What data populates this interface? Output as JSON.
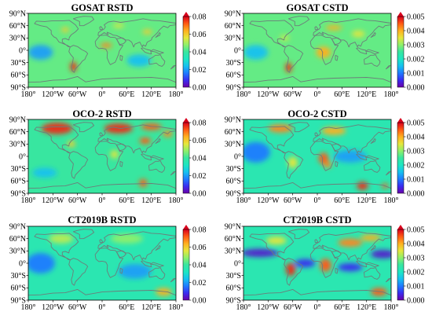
{
  "colors": {
    "colormap": [
      "#6a00a8",
      "#3a2cf0",
      "#1e7bff",
      "#16c1ef",
      "#1ee6c2",
      "#38e6a0",
      "#8ff06a",
      "#e6e63c",
      "#ffb020",
      "#ff5a14",
      "#d8001c"
    ],
    "background_field": "#2fe2b4",
    "coastline": "#6c7d7a"
  },
  "lat_ticks": [
    "90°N",
    "60°N",
    "30°N",
    "0°",
    "30°S",
    "60°S",
    "90°S"
  ],
  "lon_ticks": [
    "180°",
    "120°W",
    "60°W",
    "0°",
    "60°E",
    "120°E",
    "180°"
  ],
  "panels": [
    {
      "title": "GOSAT RSTD",
      "colorbar_ticks": [
        "0.08",
        "0.06",
        "0.04",
        "0.02",
        "0.00"
      ],
      "fill_level": 0.55,
      "hotspots": [
        {
          "lon": -70,
          "lat": -40,
          "rx": 8,
          "ry": 12,
          "level": 0.95
        },
        {
          "lon": 10,
          "lat": 12,
          "rx": 14,
          "ry": 6,
          "level": 0.85
        },
        {
          "lon": -90,
          "lat": 50,
          "rx": 10,
          "ry": 6,
          "level": 0.75
        },
        {
          "lon": 110,
          "lat": 45,
          "rx": 12,
          "ry": 6,
          "level": 0.75
        },
        {
          "lon": 40,
          "lat": 60,
          "rx": 14,
          "ry": 5,
          "level": 0.7
        },
        {
          "lon": -150,
          "lat": -5,
          "rx": 30,
          "ry": 18,
          "level": 0.25
        },
        {
          "lon": 90,
          "lat": -25,
          "rx": 30,
          "ry": 15,
          "level": 0.3
        }
      ]
    },
    {
      "title": "GOSAT CSTD",
      "colorbar_ticks": [
        "0.005",
        "0.004",
        "0.003",
        "0.002",
        "0.001",
        "0.000"
      ],
      "fill_level": 0.55,
      "hotspots": [
        {
          "lon": -70,
          "lat": -42,
          "rx": 8,
          "ry": 12,
          "level": 0.95
        },
        {
          "lon": 15,
          "lat": -5,
          "rx": 18,
          "ry": 14,
          "level": 0.8
        },
        {
          "lon": 40,
          "lat": 55,
          "rx": 20,
          "ry": 6,
          "level": 0.8
        },
        {
          "lon": 100,
          "lat": 40,
          "rx": 16,
          "ry": 8,
          "level": 0.7
        },
        {
          "lon": -80,
          "lat": 30,
          "rx": 12,
          "ry": 8,
          "level": 0.65
        },
        {
          "lon": -150,
          "lat": -5,
          "rx": 30,
          "ry": 18,
          "level": 0.3
        }
      ]
    },
    {
      "title": "OCO-2 RSTD",
      "colorbar_ticks": [
        "0.08",
        "0.06",
        "0.04",
        "0.02",
        "0.00"
      ],
      "fill_level": 0.5,
      "hotspots": [
        {
          "lon": -110,
          "lat": 68,
          "rx": 38,
          "ry": 14,
          "level": 0.95
        },
        {
          "lon": 40,
          "lat": 68,
          "rx": 35,
          "ry": 12,
          "level": 0.95
        },
        {
          "lon": 120,
          "lat": 72,
          "rx": 25,
          "ry": 8,
          "level": 0.9
        },
        {
          "lon": 105,
          "lat": 38,
          "rx": 14,
          "ry": 8,
          "level": 0.9
        },
        {
          "lon": 160,
          "lat": 55,
          "rx": 12,
          "ry": 8,
          "level": 0.85
        },
        {
          "lon": -75,
          "lat": 30,
          "rx": 10,
          "ry": 8,
          "level": 0.75
        },
        {
          "lon": 30,
          "lat": 5,
          "rx": 10,
          "ry": 10,
          "level": 0.7
        },
        {
          "lon": 100,
          "lat": -65,
          "rx": 10,
          "ry": 10,
          "level": 0.9
        },
        {
          "lon": -140,
          "lat": -40,
          "rx": 30,
          "ry": 12,
          "level": 0.3
        }
      ]
    },
    {
      "title": "OCO-2 CSTD",
      "colorbar_ticks": [
        "0.005",
        "0.004",
        "0.003",
        "0.002",
        "0.001",
        "0.000"
      ],
      "fill_level": 0.45,
      "hotspots": [
        {
          "lon": -90,
          "lat": 68,
          "rx": 30,
          "ry": 10,
          "level": 0.85
        },
        {
          "lon": 40,
          "lat": 62,
          "rx": 30,
          "ry": 10,
          "level": 0.8
        },
        {
          "lon": 15,
          "lat": -5,
          "rx": 12,
          "ry": 14,
          "level": 0.9
        },
        {
          "lon": 25,
          "lat": -20,
          "rx": 10,
          "ry": 8,
          "level": 0.85
        },
        {
          "lon": 110,
          "lat": -72,
          "rx": 14,
          "ry": 10,
          "level": 0.95
        },
        {
          "lon": 165,
          "lat": -72,
          "rx": 8,
          "ry": 6,
          "level": 0.9
        },
        {
          "lon": -60,
          "lat": -15,
          "rx": 12,
          "ry": 14,
          "level": 0.7
        },
        {
          "lon": -150,
          "lat": 10,
          "rx": 35,
          "ry": 25,
          "level": 0.2
        },
        {
          "lon": 80,
          "lat": 0,
          "rx": 40,
          "ry": 15,
          "level": 0.25
        }
      ]
    },
    {
      "title": "CT2019B RSTD",
      "colorbar_ticks": [
        "0.08",
        "0.06",
        "0.04",
        "0.02",
        "0.00"
      ],
      "fill_level": 0.45,
      "hotspots": [
        {
          "lon": -100,
          "lat": 60,
          "rx": 30,
          "ry": 12,
          "level": 0.65
        },
        {
          "lon": 60,
          "lat": 60,
          "rx": 40,
          "ry": 12,
          "level": 0.6
        },
        {
          "lon": 150,
          "lat": -70,
          "rx": 20,
          "ry": 10,
          "level": 0.8
        },
        {
          "lon": -150,
          "lat": 0,
          "rx": 35,
          "ry": 25,
          "level": 0.2
        },
        {
          "lon": 80,
          "lat": -20,
          "rx": 40,
          "ry": 18,
          "level": 0.25
        }
      ]
    },
    {
      "title": "CT2019B CSTD",
      "colorbar_ticks": [
        "0.005",
        "0.004",
        "0.003",
        "0.002",
        "0.001",
        "0.000"
      ],
      "fill_level": 0.45,
      "hotspots": [
        {
          "lon": -140,
          "lat": 25,
          "rx": 45,
          "ry": 10,
          "level": 0.05
        },
        {
          "lon": 160,
          "lat": 22,
          "rx": 30,
          "ry": 10,
          "level": 0.05
        },
        {
          "lon": -30,
          "lat": 0,
          "rx": 25,
          "ry": 10,
          "level": 0.1
        },
        {
          "lon": 80,
          "lat": -10,
          "rx": 30,
          "ry": 10,
          "level": 0.1
        },
        {
          "lon": -65,
          "lat": -15,
          "rx": 12,
          "ry": 16,
          "level": 0.95
        },
        {
          "lon": 20,
          "lat": -5,
          "rx": 14,
          "ry": 16,
          "level": 0.9
        },
        {
          "lon": 80,
          "lat": 50,
          "rx": 30,
          "ry": 10,
          "level": 0.85
        },
        {
          "lon": 130,
          "lat": 62,
          "rx": 25,
          "ry": 8,
          "level": 0.8
        },
        {
          "lon": -100,
          "lat": 55,
          "rx": 25,
          "ry": 10,
          "level": 0.7
        },
        {
          "lon": 150,
          "lat": -70,
          "rx": 20,
          "ry": 10,
          "level": 0.9
        }
      ]
    }
  ]
}
